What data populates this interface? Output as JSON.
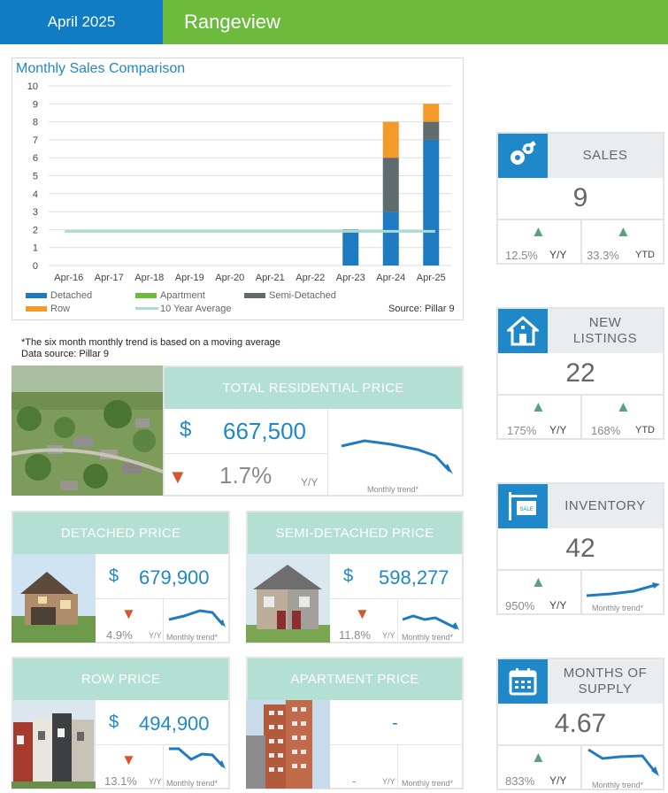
{
  "header": {
    "date": "April 2025",
    "area": "Rangeview"
  },
  "chart": {
    "title": "Monthly Sales Comparison",
    "source": "Source: Pillar 9"
  },
  "chart_data": {
    "type": "bar",
    "title": "Monthly Sales Comparison",
    "categories": [
      "Apr-16",
      "Apr-17",
      "Apr-18",
      "Apr-19",
      "Apr-20",
      "Apr-21",
      "Apr-22",
      "Apr-23",
      "Apr-24",
      "Apr-25"
    ],
    "series": [
      {
        "name": "Detached",
        "color": "#1f7bc1",
        "values": [
          0,
          0,
          0,
          0,
          0,
          0,
          0,
          2,
          3,
          7
        ]
      },
      {
        "name": "Apartment",
        "color": "#6cbb3c",
        "values": [
          0,
          0,
          0,
          0,
          0,
          0,
          0,
          0,
          0,
          0
        ]
      },
      {
        "name": "Semi-Detached",
        "color": "#5f6b6d",
        "values": [
          0,
          0,
          0,
          0,
          0,
          0,
          0,
          0,
          3,
          1
        ]
      },
      {
        "name": "Row",
        "color": "#f39a2b",
        "values": [
          0,
          0,
          0,
          0,
          0,
          0,
          0,
          0,
          2,
          1
        ]
      }
    ],
    "line": {
      "name": "10 Year Average",
      "color": "#a8ddd0",
      "value": 1.9
    },
    "yticks": [
      "0",
      "1",
      "2",
      "3",
      "4",
      "5",
      "6",
      "7",
      "8",
      "9",
      "10"
    ],
    "ylim": [
      0,
      10
    ],
    "grid": true,
    "legend": "bottom"
  },
  "notes": {
    "line1": "*The six month monthly trend is based on a moving average",
    "line2": "Data source: Pillar 9"
  },
  "total": {
    "title": "TOTAL RESIDENTIAL PRICE",
    "currency": "$",
    "value": "667,500",
    "change": "1.7%",
    "period": "Y/Y",
    "trend_label": "Monthly trend*"
  },
  "detached": {
    "title": "DETACHED PRICE",
    "currency": "$",
    "value": "679,900",
    "change": "4.9%",
    "period": "Y/Y",
    "trend_label": "Monthly trend*"
  },
  "semi": {
    "title": "SEMI-DETACHED PRICE",
    "currency": "$",
    "value": "598,277",
    "change": "11.8%",
    "period": "Y/Y",
    "trend_label": "Monthly trend*"
  },
  "row": {
    "title": "ROW PRICE",
    "currency": "$",
    "value": "494,900",
    "change": "13.1%",
    "period": "Y/Y",
    "trend_label": "Monthly trend*"
  },
  "apartment": {
    "title": "APARTMENT PRICE",
    "value": "-",
    "change": "-",
    "period": "Y/Y",
    "trend_label": "Monthly trend*"
  },
  "sales": {
    "label": "SALES",
    "value": "9",
    "yy": "12.5%",
    "yy_label": "Y/Y",
    "ytd": "33.3%",
    "ytd_label": "YTD"
  },
  "listings": {
    "label": "NEW LISTINGS",
    "value": "22",
    "yy": "175%",
    "yy_label": "Y/Y",
    "ytd": "168%",
    "ytd_label": "YTD"
  },
  "inventory": {
    "label": "INVENTORY",
    "value": "42",
    "yy": "950%",
    "yy_label": "Y/Y",
    "trend_label": "Monthly trend*"
  },
  "supply": {
    "label": "MONTHS OF SUPPLY",
    "value": "4.67",
    "yy": "833%",
    "yy_label": "Y/Y",
    "trend_label": "Monthly trend*"
  },
  "arrows": {
    "up": "▲",
    "down": "▼"
  }
}
